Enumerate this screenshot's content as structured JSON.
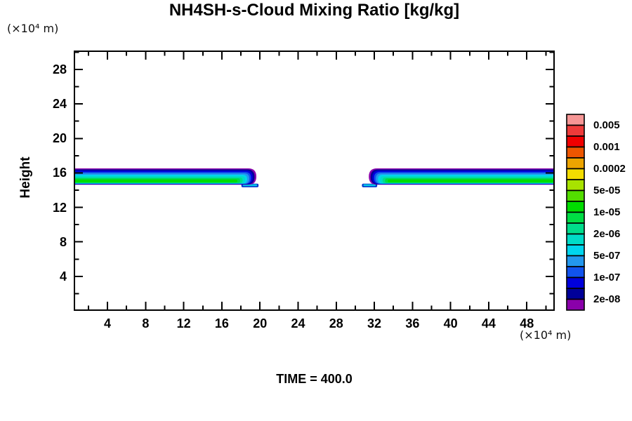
{
  "chart_data": {
    "type": "heatmap",
    "variant": "filled_contour_cross_section",
    "title": "NH4SH-s-Cloud Mixing Ratio [kg/kg]",
    "xlabel": "(×10⁴ m)",
    "ylabel": "Height",
    "y_unit": "(×10⁴ m)",
    "time_annotation": "TIME = 400.0",
    "grid": false,
    "legend_position": "right",
    "axes": {
      "xlim": [
        0.46,
        50.93
      ],
      "ylim": [
        0,
        30.2
      ],
      "x_major_ticks": [
        4,
        8,
        12,
        16,
        20,
        24,
        28,
        32,
        36,
        40,
        44,
        48
      ],
      "x_minor_ticks": [
        2,
        6,
        10,
        14,
        18,
        22,
        26,
        30,
        34,
        38,
        42,
        46,
        50
      ],
      "y_major_ticks": [
        4,
        8,
        12,
        16,
        20,
        24,
        28
      ],
      "y_minor_ticks": [
        2,
        6,
        10,
        14,
        18,
        22,
        26,
        30
      ]
    },
    "colorbar": {
      "cells_top_to_bottom": [
        "#f69695",
        "#ee3b3a",
        "#f10000",
        "#ee5600",
        "#eda400",
        "#f3dc00",
        "#a8e300",
        "#53dd00",
        "#00dd00",
        "#00dd44",
        "#00dd8b",
        "#00dcc8",
        "#00d5ee",
        "#2397ee",
        "#1153ee",
        "#0000dc",
        "#000098",
        "#8a00aa"
      ],
      "labels": [
        "0.005",
        "0.001",
        "0.0002",
        "5e-05",
        "1e-05",
        "2e-06",
        "5e-07",
        "1e-07",
        "2e-08"
      ],
      "labeled_boundaries": [
        1,
        3,
        5,
        7,
        9,
        11,
        13,
        15,
        17
      ]
    },
    "clouds": {
      "description": "Two thin stratified cloud decks near height 15×10⁴ m",
      "height_range_x1e4m": [
        14.6,
        16.5
      ],
      "bands": [
        {
          "x_start": 0.46,
          "x_end": 19.62,
          "cap": "right",
          "clip_start": true,
          "lip": {
            "x_start": 18.05,
            "x_end": 19.85,
            "y_top": 14.75,
            "y_bottom": 14.34
          }
        },
        {
          "x_start": 31.42,
          "x_end": 50.93,
          "cap": "left",
          "clip_end": true,
          "lip": {
            "x_start": 30.7,
            "x_end": 32.3,
            "y_top": 14.75,
            "y_bottom": 14.34
          }
        }
      ],
      "layers_outer_to_inner": [
        {
          "color": "#8a00aa",
          "y_top": 16.52,
          "y_bottom": 14.63,
          "tip_inset": 0
        },
        {
          "color": "#000098",
          "y_top": 16.4,
          "y_bottom": 14.66,
          "tip_inset": 2.5
        },
        {
          "color": "#0000dc",
          "y_top": 16.27,
          "y_bottom": 14.7,
          "tip_inset": 5
        },
        {
          "color": "#1153ee",
          "y_top": 16.11,
          "y_bottom": 14.72,
          "tip_inset": 7.5
        },
        {
          "color": "#2397ee",
          "y_top": 15.95,
          "y_bottom": 14.74,
          "tip_inset": 10
        },
        {
          "color": "#00d5ee",
          "y_top": 15.79,
          "y_bottom": 14.76,
          "tip_inset": 13
        },
        {
          "color": "#00dcc8",
          "y_top": 15.63,
          "y_bottom": 14.79,
          "tip_inset": 16
        },
        {
          "color": "#00dd8b",
          "y_top": 15.47,
          "y_bottom": 14.82,
          "tip_inset": 19.5
        },
        {
          "color": "#00dd44",
          "y_top": 15.35,
          "y_bottom": 14.86,
          "tip_inset": 23
        },
        {
          "color": "#00dd00",
          "y_top": 15.23,
          "y_bottom": 14.9,
          "tip_inset": 27
        }
      ],
      "lip_colors": {
        "outer": "#0033cc",
        "inner": "#00c8e8"
      }
    }
  }
}
